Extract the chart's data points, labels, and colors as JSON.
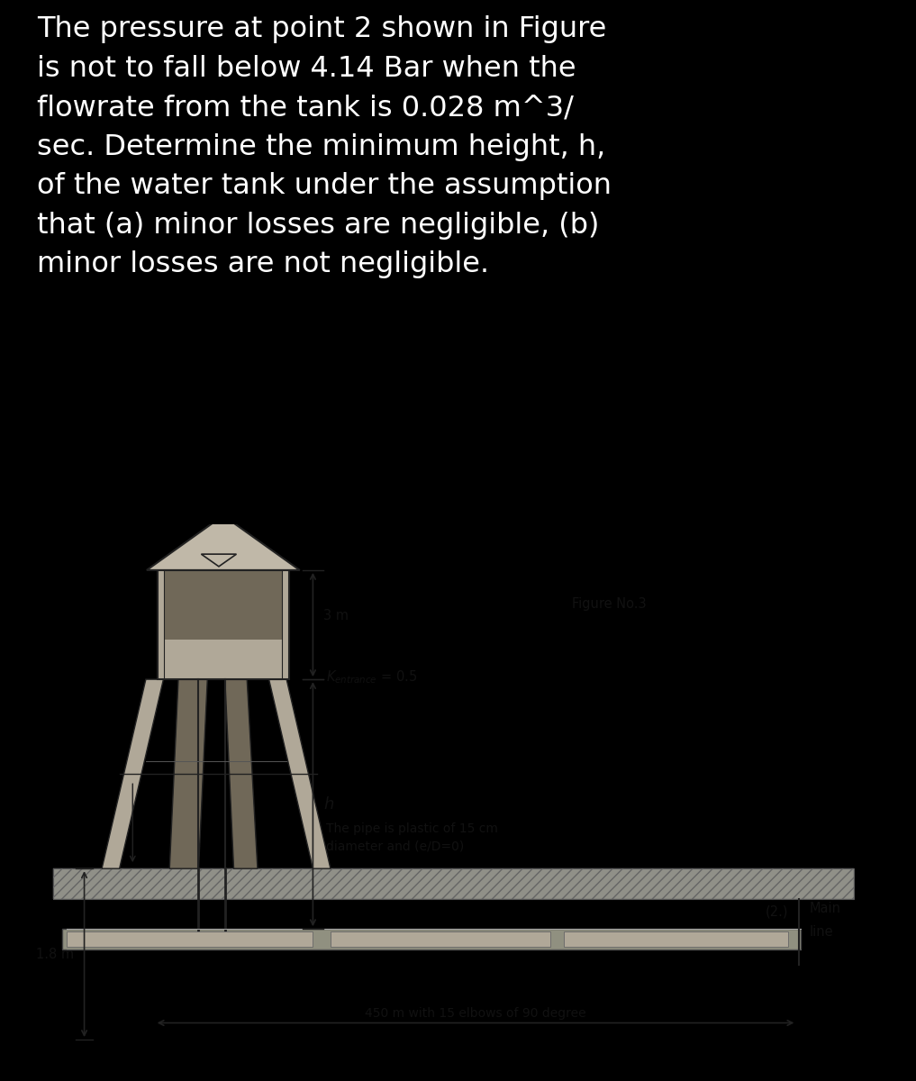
{
  "bg_color": "#000000",
  "text_color": "#ffffff",
  "problem_text": "The pressure at point 2 shown in Figure\nis not to fall below 4.14 Bar when the\nflowrate from the tank is 0.028 m^3/\nsec. Determine the minimum height, h,\nof the water tank under the assumption\nthat (a) minor losses are negligible, (b)\nminor losses are not negligible.",
  "figure_label": "Figure No.3",
  "dim_3m": "3 m",
  "dim_1_8m": "1.8 m",
  "dim_h": "h",
  "pipe_text_line1": "The pipe is plastic of 15 cm",
  "pipe_text_line2": "diameter and (e/D=0)",
  "pipe_length_text": "450 m with 15 elbows of 90 degree",
  "point2_label": "(2.)",
  "main_line_label1": "Main",
  "main_line_label2": "line",
  "diagram_bg": "#ddd8cc",
  "ground_color": "#888880",
  "tank_body_color": "#a09888",
  "tank_dark_color": "#706858",
  "roof_color": "#c0b8a8",
  "leg_color": "#b0a898",
  "pipe_color": "#888878",
  "line_color": "#222222",
  "text_dark": "#111111"
}
